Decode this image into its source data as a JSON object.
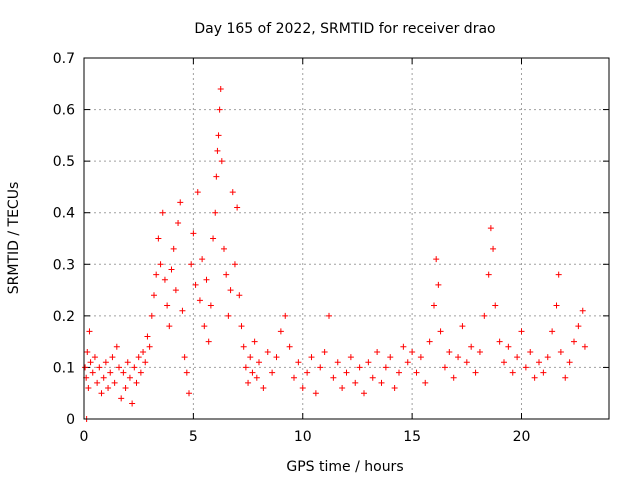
{
  "chart_data": {
    "type": "scatter",
    "title": "Day 165 of 2022, SRMTID for receiver drao",
    "xlabel": "GPS time / hours",
    "ylabel": "SRMTID / TECUs",
    "xlim": [
      0,
      24
    ],
    "ylim": [
      0,
      0.7
    ],
    "xticks": [
      0,
      5,
      10,
      15,
      20
    ],
    "yticks": [
      0,
      0.1,
      0.2,
      0.3,
      0.4,
      0.5,
      0.6,
      0.7
    ],
    "xtick_labels": [
      "0",
      "5",
      "10",
      "15",
      "20"
    ],
    "ytick_labels": [
      "0",
      "0.1",
      "0.2",
      "0.3",
      "0.4",
      "0.5",
      "0.6",
      "0.7"
    ],
    "grid": true,
    "marker": "+",
    "color": "#ff0000",
    "series": [
      {
        "name": "SRMTID",
        "points": [
          [
            0.05,
            0.1
          ],
          [
            0.1,
            0.08
          ],
          [
            0.15,
            0.13
          ],
          [
            0.2,
            0.06
          ],
          [
            0.25,
            0.17
          ],
          [
            0.3,
            0.11
          ],
          [
            0.12,
            0.0
          ],
          [
            0.4,
            0.09
          ],
          [
            0.5,
            0.12
          ],
          [
            0.6,
            0.07
          ],
          [
            0.7,
            0.1
          ],
          [
            0.8,
            0.05
          ],
          [
            0.9,
            0.08
          ],
          [
            1.0,
            0.11
          ],
          [
            1.1,
            0.06
          ],
          [
            1.2,
            0.09
          ],
          [
            1.3,
            0.12
          ],
          [
            1.4,
            0.07
          ],
          [
            1.5,
            0.14
          ],
          [
            1.6,
            0.1
          ],
          [
            1.7,
            0.04
          ],
          [
            1.8,
            0.09
          ],
          [
            1.9,
            0.06
          ],
          [
            2.0,
            0.11
          ],
          [
            2.1,
            0.08
          ],
          [
            2.2,
            0.03
          ],
          [
            2.3,
            0.1
          ],
          [
            2.4,
            0.07
          ],
          [
            2.5,
            0.12
          ],
          [
            2.6,
            0.09
          ],
          [
            2.7,
            0.13
          ],
          [
            2.8,
            0.11
          ],
          [
            2.9,
            0.16
          ],
          [
            3.0,
            0.14
          ],
          [
            3.1,
            0.2
          ],
          [
            3.2,
            0.24
          ],
          [
            3.3,
            0.28
          ],
          [
            3.4,
            0.35
          ],
          [
            3.5,
            0.3
          ],
          [
            3.6,
            0.4
          ],
          [
            3.7,
            0.27
          ],
          [
            3.8,
            0.22
          ],
          [
            3.9,
            0.18
          ],
          [
            4.0,
            0.29
          ],
          [
            4.1,
            0.33
          ],
          [
            4.2,
            0.25
          ],
          [
            4.3,
            0.38
          ],
          [
            4.4,
            0.42
          ],
          [
            4.5,
            0.21
          ],
          [
            4.6,
            0.12
          ],
          [
            4.7,
            0.09
          ],
          [
            4.8,
            0.05
          ],
          [
            4.9,
            0.3
          ],
          [
            5.0,
            0.36
          ],
          [
            5.1,
            0.26
          ],
          [
            5.2,
            0.44
          ],
          [
            5.3,
            0.23
          ],
          [
            5.4,
            0.31
          ],
          [
            5.5,
            0.18
          ],
          [
            5.6,
            0.27
          ],
          [
            5.7,
            0.15
          ],
          [
            5.8,
            0.22
          ],
          [
            5.9,
            0.35
          ],
          [
            6.0,
            0.4
          ],
          [
            6.05,
            0.47
          ],
          [
            6.1,
            0.52
          ],
          [
            6.15,
            0.55
          ],
          [
            6.2,
            0.6
          ],
          [
            6.25,
            0.64
          ],
          [
            6.3,
            0.5
          ],
          [
            6.4,
            0.33
          ],
          [
            6.5,
            0.28
          ],
          [
            6.6,
            0.2
          ],
          [
            6.7,
            0.25
          ],
          [
            6.8,
            0.44
          ],
          [
            6.9,
            0.3
          ],
          [
            7.0,
            0.41
          ],
          [
            7.1,
            0.24
          ],
          [
            7.2,
            0.18
          ],
          [
            7.3,
            0.14
          ],
          [
            7.4,
            0.1
          ],
          [
            7.5,
            0.07
          ],
          [
            7.6,
            0.12
          ],
          [
            7.7,
            0.09
          ],
          [
            7.8,
            0.15
          ],
          [
            7.9,
            0.08
          ],
          [
            8.0,
            0.11
          ],
          [
            8.2,
            0.06
          ],
          [
            8.4,
            0.13
          ],
          [
            8.6,
            0.09
          ],
          [
            8.8,
            0.12
          ],
          [
            9.0,
            0.17
          ],
          [
            9.2,
            0.2
          ],
          [
            9.4,
            0.14
          ],
          [
            9.6,
            0.08
          ],
          [
            9.8,
            0.11
          ],
          [
            10.0,
            0.06
          ],
          [
            10.2,
            0.09
          ],
          [
            10.4,
            0.12
          ],
          [
            10.6,
            0.05
          ],
          [
            10.8,
            0.1
          ],
          [
            11.0,
            0.13
          ],
          [
            11.2,
            0.2
          ],
          [
            11.4,
            0.08
          ],
          [
            11.6,
            0.11
          ],
          [
            11.8,
            0.06
          ],
          [
            12.0,
            0.09
          ],
          [
            12.2,
            0.12
          ],
          [
            12.4,
            0.07
          ],
          [
            12.6,
            0.1
          ],
          [
            12.8,
            0.05
          ],
          [
            13.0,
            0.11
          ],
          [
            13.2,
            0.08
          ],
          [
            13.4,
            0.13
          ],
          [
            13.6,
            0.07
          ],
          [
            13.8,
            0.1
          ],
          [
            14.0,
            0.12
          ],
          [
            14.2,
            0.06
          ],
          [
            14.4,
            0.09
          ],
          [
            14.6,
            0.14
          ],
          [
            14.8,
            0.11
          ],
          [
            15.0,
            0.13
          ],
          [
            15.2,
            0.09
          ],
          [
            15.4,
            0.12
          ],
          [
            15.6,
            0.07
          ],
          [
            15.8,
            0.15
          ],
          [
            16.0,
            0.22
          ],
          [
            16.1,
            0.31
          ],
          [
            16.2,
            0.26
          ],
          [
            16.3,
            0.17
          ],
          [
            16.5,
            0.1
          ],
          [
            16.7,
            0.13
          ],
          [
            16.9,
            0.08
          ],
          [
            17.1,
            0.12
          ],
          [
            17.3,
            0.18
          ],
          [
            17.5,
            0.11
          ],
          [
            17.7,
            0.14
          ],
          [
            17.9,
            0.09
          ],
          [
            18.1,
            0.13
          ],
          [
            18.3,
            0.2
          ],
          [
            18.5,
            0.28
          ],
          [
            18.6,
            0.37
          ],
          [
            18.7,
            0.33
          ],
          [
            18.8,
            0.22
          ],
          [
            19.0,
            0.15
          ],
          [
            19.2,
            0.11
          ],
          [
            19.4,
            0.14
          ],
          [
            19.6,
            0.09
          ],
          [
            19.8,
            0.12
          ],
          [
            20.0,
            0.17
          ],
          [
            20.2,
            0.1
          ],
          [
            20.4,
            0.13
          ],
          [
            20.6,
            0.08
          ],
          [
            20.8,
            0.11
          ],
          [
            21.0,
            0.09
          ],
          [
            21.2,
            0.12
          ],
          [
            21.4,
            0.17
          ],
          [
            21.6,
            0.22
          ],
          [
            21.7,
            0.28
          ],
          [
            21.8,
            0.13
          ],
          [
            22.0,
            0.08
          ],
          [
            22.2,
            0.11
          ],
          [
            22.4,
            0.15
          ],
          [
            22.6,
            0.18
          ],
          [
            22.8,
            0.21
          ],
          [
            22.9,
            0.14
          ]
        ]
      }
    ]
  }
}
